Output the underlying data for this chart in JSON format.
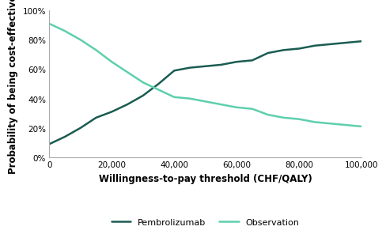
{
  "title": "",
  "xlabel": "Willingness-to-pay threshold (CHF/QALY)",
  "ylabel": "Probability of being cost-effective",
  "xlim": [
    0,
    100000
  ],
  "ylim": [
    0,
    1.0
  ],
  "xticks": [
    0,
    20000,
    40000,
    60000,
    80000,
    100000
  ],
  "yticks": [
    0.0,
    0.2,
    0.4,
    0.6,
    0.8,
    1.0
  ],
  "pembrolizumab_color": "#1a5c52",
  "observation_color": "#5ecfad",
  "pembrolizumab_x": [
    0,
    5000,
    10000,
    15000,
    20000,
    25000,
    30000,
    35000,
    40000,
    45000,
    50000,
    55000,
    60000,
    65000,
    70000,
    75000,
    80000,
    85000,
    90000,
    95000,
    100000
  ],
  "pembrolizumab_y": [
    0.09,
    0.14,
    0.2,
    0.27,
    0.31,
    0.36,
    0.42,
    0.5,
    0.59,
    0.61,
    0.62,
    0.63,
    0.65,
    0.66,
    0.71,
    0.73,
    0.74,
    0.76,
    0.77,
    0.78,
    0.79
  ],
  "observation_x": [
    0,
    5000,
    10000,
    15000,
    20000,
    25000,
    30000,
    35000,
    40000,
    45000,
    50000,
    55000,
    60000,
    65000,
    70000,
    75000,
    80000,
    85000,
    90000,
    95000,
    100000
  ],
  "observation_y": [
    0.91,
    0.86,
    0.8,
    0.73,
    0.65,
    0.58,
    0.51,
    0.46,
    0.41,
    0.4,
    0.38,
    0.36,
    0.34,
    0.33,
    0.29,
    0.27,
    0.26,
    0.24,
    0.23,
    0.22,
    0.21
  ],
  "legend_pembrolizumab": "Pembrolizumab",
  "legend_observation": "Observation",
  "linewidth": 1.8,
  "background_color": "#ffffff",
  "tick_fontsize": 7.5,
  "label_fontsize": 8.5,
  "legend_fontsize": 8.0
}
